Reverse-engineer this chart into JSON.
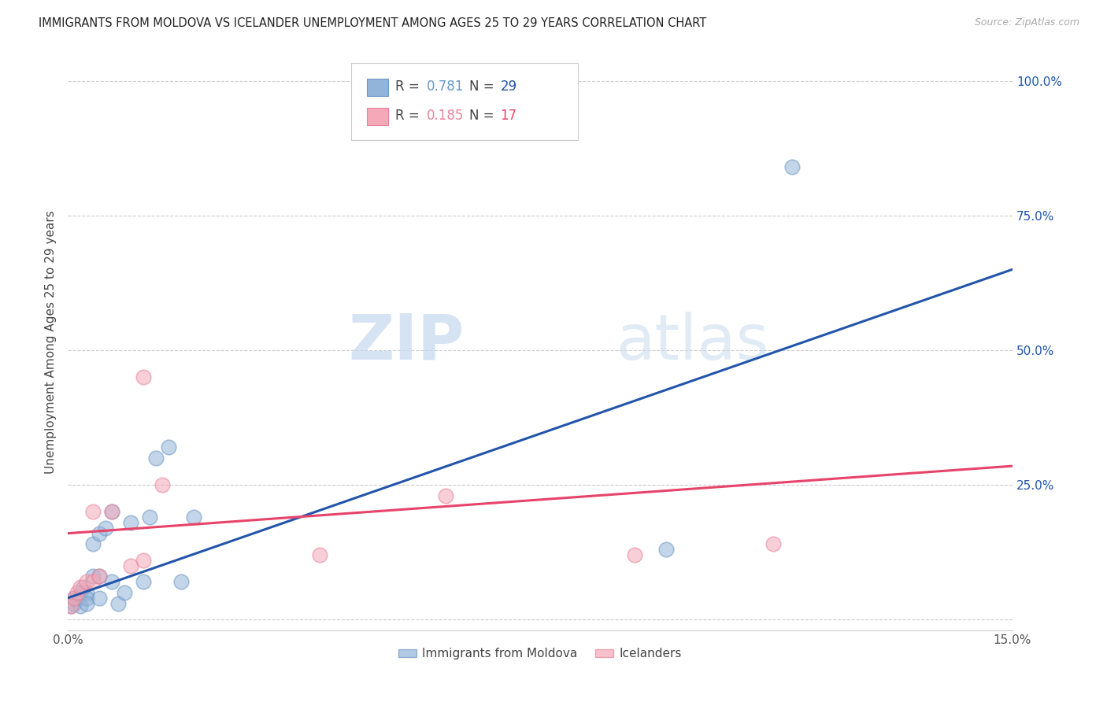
{
  "title": "IMMIGRANTS FROM MOLDOVA VS ICELANDER UNEMPLOYMENT AMONG AGES 25 TO 29 YEARS CORRELATION CHART",
  "source": "Source: ZipAtlas.com",
  "ylabel": "Unemployment Among Ages 25 to 29 years",
  "xlim": [
    0.0,
    0.15
  ],
  "ylim": [
    -0.02,
    1.05
  ],
  "x_ticks": [
    0.0,
    0.03,
    0.06,
    0.09,
    0.12,
    0.15
  ],
  "x_tick_labels": [
    "0.0%",
    "",
    "",
    "",
    "",
    "15.0%"
  ],
  "y_ticks_right": [
    0.0,
    0.25,
    0.5,
    0.75,
    1.0
  ],
  "y_tick_labels_right": [
    "",
    "25.0%",
    "50.0%",
    "75.0%",
    "100.0%"
  ],
  "blue_R": "0.781",
  "blue_N": "29",
  "pink_R": "0.185",
  "pink_N": "17",
  "blue_color": "#92b4d8",
  "pink_color": "#f4a8b8",
  "blue_edge_color": "#7098c4",
  "pink_edge_color": "#e8849a",
  "blue_line_color": "#2255aa",
  "pink_line_color": "#e8436a",
  "watermark_zip": "ZIP",
  "watermark_atlas": "atlas",
  "blue_scatter_x": [
    0.0005,
    0.001,
    0.001,
    0.0015,
    0.002,
    0.002,
    0.0025,
    0.003,
    0.003,
    0.003,
    0.004,
    0.004,
    0.005,
    0.005,
    0.005,
    0.006,
    0.007,
    0.007,
    0.008,
    0.009,
    0.01,
    0.012,
    0.013,
    0.014,
    0.016,
    0.018,
    0.02,
    0.095,
    0.115
  ],
  "blue_scatter_y": [
    0.025,
    0.03,
    0.04,
    0.04,
    0.025,
    0.05,
    0.06,
    0.05,
    0.04,
    0.03,
    0.14,
    0.08,
    0.16,
    0.08,
    0.04,
    0.17,
    0.2,
    0.07,
    0.03,
    0.05,
    0.18,
    0.07,
    0.19,
    0.3,
    0.32,
    0.07,
    0.19,
    0.13,
    0.84
  ],
  "pink_scatter_x": [
    0.0005,
    0.001,
    0.0015,
    0.002,
    0.003,
    0.004,
    0.004,
    0.005,
    0.007,
    0.01,
    0.012,
    0.012,
    0.015,
    0.04,
    0.06,
    0.09,
    0.112
  ],
  "pink_scatter_y": [
    0.025,
    0.04,
    0.05,
    0.06,
    0.07,
    0.07,
    0.2,
    0.08,
    0.2,
    0.1,
    0.11,
    0.45,
    0.25,
    0.12,
    0.23,
    0.12,
    0.14
  ],
  "blue_line_x0": 0.0,
  "blue_line_y0": 0.04,
  "blue_line_x1": 0.15,
  "blue_line_y1": 0.65,
  "pink_line_x0": 0.0,
  "pink_line_y0": 0.16,
  "pink_line_x1": 0.15,
  "pink_line_y1": 0.285,
  "legend_R_color_blue": "#6699cc",
  "legend_N_color_blue": "#2255aa",
  "legend_R_color_pink": "#e8849a",
  "legend_N_color_pink": "#e8436a"
}
